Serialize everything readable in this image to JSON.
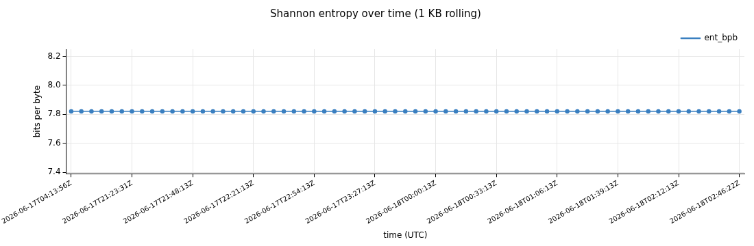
{
  "chart_data": {
    "type": "line",
    "title": "Shannon entropy over time (1 KB rolling)",
    "xlabel": "time (UTC)",
    "ylabel": "bits per byte",
    "categories": [
      "2026-06-17T04:13:56Z",
      null,
      null,
      null,
      null,
      null,
      "2026-06-17T21:23:31Z",
      null,
      null,
      null,
      null,
      null,
      "2026-06-17T21:48:13Z",
      null,
      null,
      null,
      null,
      null,
      "2026-06-17T22:21:13Z",
      null,
      null,
      null,
      null,
      null,
      "2026-06-17T22:54:13Z",
      null,
      null,
      null,
      null,
      null,
      "2026-06-17T23:27:13Z",
      null,
      null,
      null,
      null,
      null,
      "2026-06-18T00:00:13Z",
      null,
      null,
      null,
      null,
      null,
      "2026-06-18T00:33:13Z",
      null,
      null,
      null,
      null,
      null,
      "2026-06-18T01:06:13Z",
      null,
      null,
      null,
      null,
      null,
      "2026-06-18T01:39:13Z",
      null,
      null,
      null,
      null,
      null,
      "2026-06-18T02:12:13Z",
      null,
      null,
      null,
      null,
      null,
      "2026-06-18T02:46:22Z"
    ],
    "series": [
      {
        "name": "ent_bpb",
        "color": "#3a7fc0",
        "values": [
          7.82,
          7.82,
          7.82,
          7.82,
          7.82,
          7.82,
          7.82,
          7.82,
          7.82,
          7.82,
          7.82,
          7.82,
          7.82,
          7.82,
          7.82,
          7.82,
          7.82,
          7.82,
          7.82,
          7.82,
          7.82,
          7.82,
          7.82,
          7.82,
          7.82,
          7.82,
          7.82,
          7.82,
          7.82,
          7.82,
          7.82,
          7.82,
          7.82,
          7.82,
          7.82,
          7.82,
          7.82,
          7.82,
          7.82,
          7.82,
          7.82,
          7.82,
          7.82,
          7.82,
          7.82,
          7.82,
          7.82,
          7.82,
          7.82,
          7.82,
          7.82,
          7.82,
          7.82,
          7.82,
          7.82,
          7.82,
          7.82,
          7.82,
          7.82,
          7.82,
          7.82,
          7.82,
          7.82,
          7.82,
          7.82,
          7.82,
          7.82
        ]
      }
    ],
    "ylim": [
      7.39,
      8.25
    ],
    "yticks": [
      7.4,
      7.6,
      7.8,
      {
        "value": 8,
        "label": "8.0"
      },
      8.2
    ],
    "grid": true,
    "legend": "top right",
    "marker": "circle",
    "line_style": "solid"
  }
}
